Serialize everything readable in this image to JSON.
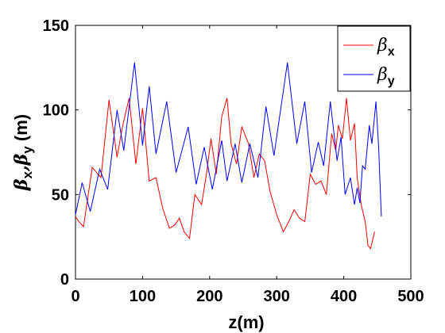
{
  "chart_data": {
    "type": "line",
    "title": "",
    "xlabel": "z(m)",
    "ylabel_parts": [
      "β",
      "x",
      ",β",
      "y",
      " (m)"
    ],
    "xlim": [
      0,
      500
    ],
    "ylim": [
      0,
      150
    ],
    "xticks": [
      0,
      100,
      200,
      300,
      400,
      500
    ],
    "yticks": [
      0,
      50,
      100,
      150
    ],
    "grid": false,
    "legend_position": "top-right",
    "series": [
      {
        "name_symbol": "β",
        "name_subscript": "x",
        "color": "#ff0000",
        "points": [
          [
            0,
            37
          ],
          [
            5,
            34
          ],
          [
            12,
            31
          ],
          [
            25,
            66
          ],
          [
            38,
            60
          ],
          [
            50,
            106
          ],
          [
            62,
            72
          ],
          [
            70,
            90
          ],
          [
            80,
            107
          ],
          [
            90,
            68
          ],
          [
            100,
            101
          ],
          [
            110,
            58
          ],
          [
            120,
            60
          ],
          [
            130,
            42
          ],
          [
            140,
            30
          ],
          [
            148,
            32
          ],
          [
            155,
            36
          ],
          [
            162,
            28
          ],
          [
            170,
            24
          ],
          [
            178,
            50
          ],
          [
            188,
            44
          ],
          [
            196,
            64
          ],
          [
            202,
            83
          ],
          [
            210,
            62
          ],
          [
            218,
            96
          ],
          [
            226,
            107
          ],
          [
            232,
            80
          ],
          [
            240,
            68
          ],
          [
            248,
            90
          ],
          [
            258,
            80
          ],
          [
            266,
            60
          ],
          [
            274,
            74
          ],
          [
            282,
            70
          ],
          [
            290,
            52
          ],
          [
            300,
            38
          ],
          [
            310,
            28
          ],
          [
            318,
            34
          ],
          [
            326,
            41
          ],
          [
            334,
            36
          ],
          [
            342,
            34
          ],
          [
            350,
            62
          ],
          [
            358,
            56
          ],
          [
            366,
            58
          ],
          [
            374,
            50
          ],
          [
            382,
            86
          ],
          [
            388,
            76
          ],
          [
            392,
            91
          ],
          [
            398,
            83
          ],
          [
            404,
            107
          ],
          [
            410,
            82
          ],
          [
            416,
            92
          ],
          [
            420,
            60
          ],
          [
            426,
            44
          ],
          [
            432,
            34
          ],
          [
            436,
            20
          ],
          [
            440,
            18
          ],
          [
            446,
            28
          ]
        ]
      },
      {
        "name_symbol": "β",
        "name_subscript": "y",
        "color": "#0000ff",
        "points": [
          [
            0,
            38
          ],
          [
            10,
            57
          ],
          [
            22,
            40
          ],
          [
            36,
            65
          ],
          [
            48,
            53
          ],
          [
            62,
            100
          ],
          [
            72,
            76
          ],
          [
            88,
            128
          ],
          [
            100,
            79
          ],
          [
            110,
            114
          ],
          [
            120,
            74
          ],
          [
            136,
            105
          ],
          [
            150,
            63
          ],
          [
            168,
            90
          ],
          [
            180,
            56
          ],
          [
            192,
            78
          ],
          [
            204,
            53
          ],
          [
            218,
            82
          ],
          [
            226,
            58
          ],
          [
            238,
            80
          ],
          [
            248,
            57
          ],
          [
            260,
            80
          ],
          [
            272,
            60
          ],
          [
            284,
            102
          ],
          [
            296,
            73
          ],
          [
            316,
            128
          ],
          [
            330,
            80
          ],
          [
            342,
            105
          ],
          [
            352,
            63
          ],
          [
            362,
            81
          ],
          [
            370,
            67
          ],
          [
            380,
            105
          ],
          [
            390,
            70
          ],
          [
            396,
            84
          ],
          [
            402,
            50
          ],
          [
            410,
            60
          ],
          [
            416,
            44
          ],
          [
            420,
            54
          ],
          [
            424,
            45
          ],
          [
            428,
            67
          ],
          [
            432,
            65
          ],
          [
            438,
            91
          ],
          [
            442,
            80
          ],
          [
            448,
            105
          ],
          [
            452,
            78
          ],
          [
            456,
            37
          ]
        ]
      }
    ]
  }
}
